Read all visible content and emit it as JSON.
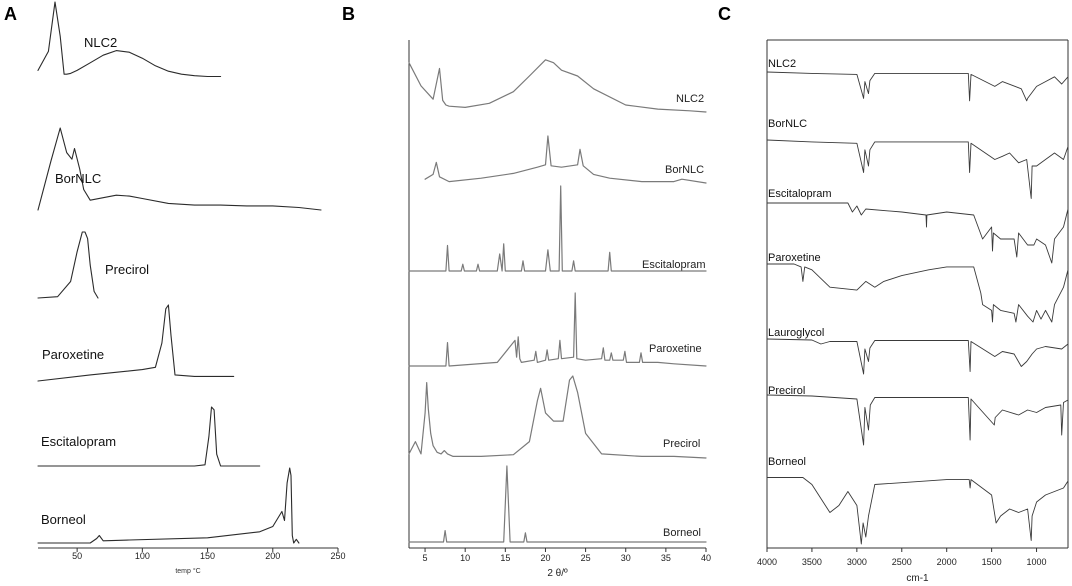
{
  "chart_data": [
    {
      "panel": "A",
      "type": "line",
      "xlabel": "temp °C",
      "xlim": [
        20,
        250
      ],
      "xticks": [
        50,
        100,
        150,
        200,
        250
      ],
      "series": [
        {
          "name": "NLC2",
          "x": [
            20,
            28,
            33,
            37,
            40,
            42,
            45,
            50,
            60,
            70,
            80,
            90,
            100,
            110,
            120,
            130,
            140,
            150,
            160
          ],
          "y": [
            0.1,
            0.35,
            1.0,
            0.55,
            0.05,
            0.05,
            0.06,
            0.1,
            0.2,
            0.3,
            0.36,
            0.34,
            0.26,
            0.16,
            0.09,
            0.05,
            0.03,
            0.02,
            0.02
          ]
        },
        {
          "name": "BorNLC",
          "x": [
            20,
            30,
            37,
            42,
            46,
            48,
            52,
            55,
            60,
            70,
            80,
            90,
            100,
            120,
            140,
            160,
            180,
            200,
            220,
            237
          ],
          "y": [
            0.0,
            0.6,
            1.0,
            0.7,
            0.62,
            0.75,
            0.5,
            0.25,
            0.12,
            0.15,
            0.18,
            0.17,
            0.14,
            0.08,
            0.06,
            0.06,
            0.05,
            0.05,
            0.03,
            0.0
          ]
        },
        {
          "name": "Precirol",
          "x": [
            20,
            35,
            45,
            50,
            54,
            56,
            58,
            60,
            63,
            66
          ],
          "y": [
            0.0,
            0.02,
            0.25,
            0.7,
            1.0,
            1.0,
            0.9,
            0.5,
            0.1,
            0.0
          ]
        },
        {
          "name": "Paroxetine",
          "x": [
            20,
            60,
            100,
            110,
            115,
            118,
            120,
            122,
            125,
            140,
            170
          ],
          "y": [
            0.0,
            0.08,
            0.15,
            0.18,
            0.5,
            0.95,
            1.0,
            0.6,
            0.08,
            0.06,
            0.06
          ]
        },
        {
          "name": "Escitalopram",
          "x": [
            20,
            100,
            140,
            148,
            151,
            153,
            155,
            157,
            160,
            190
          ],
          "y": [
            0.0,
            0.0,
            0.0,
            0.02,
            0.5,
            1.0,
            0.95,
            0.2,
            0.0,
            0.0
          ]
        },
        {
          "name": "Borneol",
          "x": [
            20,
            60,
            65,
            67,
            70,
            90,
            150,
            190,
            200,
            207,
            209,
            211,
            213,
            214,
            215,
            216,
            218,
            220
          ],
          "y": [
            0.0,
            0.0,
            0.06,
            0.1,
            0.03,
            0.04,
            0.07,
            0.15,
            0.22,
            0.42,
            0.3,
            0.8,
            1.0,
            0.9,
            0.1,
            0.0,
            0.05,
            0.0
          ]
        }
      ]
    },
    {
      "panel": "B",
      "type": "line",
      "xlabel": "2 θ/º",
      "xlim": [
        3,
        40
      ],
      "xticks": [
        5,
        10,
        15,
        20,
        25,
        30,
        35,
        40
      ],
      "series": [
        {
          "name": "NLC2",
          "x": [
            3,
            4.5,
            6,
            6.8,
            7.2,
            7.6,
            8,
            10,
            13,
            16,
            18,
            20,
            21,
            22,
            24,
            26,
            30,
            34,
            38,
            40
          ],
          "y": [
            0.85,
            0.45,
            0.22,
            0.75,
            0.2,
            0.12,
            0.1,
            0.08,
            0.15,
            0.35,
            0.62,
            0.9,
            0.85,
            0.72,
            0.62,
            0.4,
            0.12,
            0.05,
            0.02,
            0.0
          ]
        },
        {
          "name": "BorNLC",
          "x": [
            5,
            6,
            6.4,
            6.8,
            8,
            12,
            16,
            19,
            20,
            20.3,
            20.7,
            22,
            24,
            24.3,
            24.7,
            26,
            28,
            32,
            36,
            37,
            40
          ],
          "y": [
            0.1,
            0.2,
            0.45,
            0.15,
            0.05,
            0.12,
            0.22,
            0.35,
            0.4,
            1.0,
            0.38,
            0.35,
            0.4,
            0.72,
            0.38,
            0.2,
            0.12,
            0.05,
            0.05,
            0.1,
            0.02
          ]
        },
        {
          "name": "Escitalopram",
          "x": [
            3,
            7.6,
            7.8,
            8,
            9.5,
            9.7,
            9.9,
            11.4,
            11.6,
            11.8,
            14,
            14.3,
            14.6,
            14.8,
            15,
            15.2,
            17,
            17.2,
            17.4,
            20,
            20.3,
            20.6,
            21.7,
            21.9,
            22.1,
            23.3,
            23.5,
            23.7,
            27.8,
            28,
            28.2,
            40
          ],
          "y": [
            0.0,
            0.0,
            0.3,
            0.0,
            0.0,
            0.08,
            0.0,
            0.0,
            0.08,
            0.0,
            0.0,
            0.2,
            0.0,
            0.32,
            0.0,
            0.0,
            0.0,
            0.12,
            0.0,
            0.0,
            0.25,
            0.0,
            0.0,
            1.0,
            0.0,
            0.0,
            0.12,
            0.0,
            0.0,
            0.22,
            0.0,
            0.0
          ]
        },
        {
          "name": "Paroxetine",
          "x": [
            3,
            7.6,
            7.8,
            8,
            14,
            16.2,
            16.4,
            16.6,
            16.8,
            17,
            18.6,
            18.8,
            19,
            20,
            20.2,
            20.4,
            21.6,
            21.8,
            22,
            23.5,
            23.7,
            23.9,
            25,
            27,
            27.2,
            27.4,
            28,
            28.2,
            28.4,
            29.7,
            29.9,
            30.1,
            31.7,
            31.9,
            32.1,
            34,
            36,
            40
          ],
          "y": [
            0.0,
            0.0,
            0.32,
            0.0,
            0.05,
            0.35,
            0.12,
            0.4,
            0.1,
            0.05,
            0.08,
            0.2,
            0.05,
            0.08,
            0.22,
            0.08,
            0.1,
            0.35,
            0.1,
            0.12,
            1.0,
            0.1,
            0.08,
            0.1,
            0.25,
            0.08,
            0.08,
            0.18,
            0.08,
            0.08,
            0.2,
            0.05,
            0.05,
            0.18,
            0.05,
            0.05,
            0.03,
            0.0
          ]
        },
        {
          "name": "Precirol",
          "x": [
            3,
            3.8,
            4.5,
            5,
            5.2,
            5.4,
            5.7,
            6,
            6.5,
            7,
            7.4,
            7.8,
            8.5,
            12,
            16,
            18,
            19,
            19.4,
            20,
            21,
            22.2,
            23,
            23.4,
            24,
            25,
            27,
            32,
            36,
            40
          ],
          "y": [
            0.05,
            0.2,
            0.05,
            0.55,
            0.92,
            0.6,
            0.3,
            0.15,
            0.07,
            0.05,
            0.09,
            0.05,
            0.02,
            0.02,
            0.04,
            0.2,
            0.7,
            0.85,
            0.55,
            0.45,
            0.45,
            0.95,
            1.0,
            0.8,
            0.3,
            0.05,
            0.02,
            0.02,
            0.0
          ]
        },
        {
          "name": "Borneol",
          "x": [
            3,
            7.3,
            7.5,
            7.7,
            14.8,
            15.2,
            15.6,
            17.3,
            17.5,
            17.7,
            40
          ],
          "y": [
            0.0,
            0.0,
            0.15,
            0.0,
            0.0,
            1.0,
            0.0,
            0.0,
            0.12,
            0.0,
            0.0
          ]
        }
      ]
    },
    {
      "panel": "C",
      "type": "line",
      "xlabel": "cm-1",
      "xlim": [
        4000,
        650
      ],
      "xticks": [
        4000,
        3500,
        3000,
        2500,
        2000,
        1500,
        1000
      ],
      "series": [
        {
          "name": "NLC2",
          "x": [
            4000,
            3500,
            3000,
            2925,
            2910,
            2870,
            2855,
            2800,
            2000,
            1760,
            1745,
            1730,
            1465,
            1380,
            1170,
            1110,
            1100,
            1000,
            900,
            800,
            720,
            650
          ],
          "y": [
            1.0,
            0.97,
            0.95,
            0.45,
            0.8,
            0.55,
            0.82,
            0.97,
            0.97,
            0.97,
            0.4,
            0.95,
            0.7,
            0.8,
            0.65,
            0.4,
            0.45,
            0.7,
            0.8,
            0.9,
            0.75,
            0.9
          ]
        },
        {
          "name": "BorNLC",
          "x": [
            4000,
            3500,
            3000,
            2925,
            2910,
            2870,
            2855,
            2800,
            2000,
            1760,
            1745,
            1730,
            1465,
            1380,
            1300,
            1200,
            1110,
            1060,
            1050,
            1000,
            900,
            800,
            700,
            650
          ],
          "y": [
            1.0,
            0.97,
            0.95,
            0.5,
            0.85,
            0.6,
            0.85,
            0.97,
            0.97,
            0.97,
            0.5,
            0.95,
            0.7,
            0.75,
            0.8,
            0.65,
            0.7,
            0.1,
            0.6,
            0.6,
            0.7,
            0.8,
            0.7,
            0.9
          ]
        },
        {
          "name": "Escitalopram",
          "x": [
            4000,
            3100,
            3050,
            3000,
            2950,
            2900,
            2500,
            2230,
            2225,
            2220,
            2000,
            1700,
            1600,
            1500,
            1490,
            1480,
            1400,
            1250,
            1220,
            1200,
            1100,
            1030,
            1000,
            900,
            830,
            800,
            700,
            650
          ],
          "y": [
            1.0,
            1.0,
            0.85,
            0.95,
            0.8,
            0.9,
            0.85,
            0.8,
            0.6,
            0.8,
            0.85,
            0.8,
            0.4,
            0.6,
            0.2,
            0.5,
            0.4,
            0.4,
            0.1,
            0.5,
            0.3,
            0.3,
            0.4,
            0.3,
            0.0,
            0.4,
            0.6,
            0.9
          ]
        },
        {
          "name": "Paroxetine",
          "x": [
            4000,
            3700,
            3620,
            3600,
            3580,
            3500,
            3300,
            3000,
            2900,
            2800,
            2700,
            2500,
            2200,
            2000,
            1700,
            1620,
            1600,
            1500,
            1490,
            1480,
            1400,
            1250,
            1230,
            1200,
            1100,
            1040,
            1000,
            950,
            900,
            830,
            820,
            800,
            700,
            650
          ],
          "y": [
            1.0,
            1.0,
            0.95,
            0.7,
            0.95,
            0.9,
            0.6,
            0.55,
            0.7,
            0.6,
            0.7,
            0.8,
            0.9,
            0.95,
            0.95,
            0.5,
            0.3,
            0.2,
            0.0,
            0.3,
            0.2,
            0.15,
            0.0,
            0.3,
            0.1,
            0.0,
            0.2,
            0.05,
            0.2,
            0.0,
            0.1,
            0.3,
            0.6,
            0.9
          ]
        },
        {
          "name": "Lauroglycol",
          "x": [
            4000,
            3500,
            3400,
            3300,
            3000,
            2925,
            2910,
            2870,
            2855,
            2800,
            2000,
            1760,
            1740,
            1730,
            1465,
            1380,
            1250,
            1170,
            1110,
            1050,
            1000,
            900,
            720,
            650
          ],
          "y": [
            1.0,
            0.98,
            0.9,
            0.95,
            0.95,
            0.3,
            0.8,
            0.55,
            0.82,
            0.97,
            0.97,
            0.97,
            0.35,
            0.95,
            0.65,
            0.75,
            0.7,
            0.45,
            0.55,
            0.7,
            0.8,
            0.85,
            0.8,
            0.9
          ]
        },
        {
          "name": "Precirol",
          "x": [
            4000,
            3500,
            3000,
            2925,
            2910,
            2870,
            2850,
            2800,
            2000,
            1760,
            1740,
            1730,
            1470,
            1460,
            1380,
            1200,
            1100,
            1000,
            900,
            730,
            720,
            700,
            650
          ],
          "y": [
            1.0,
            0.98,
            0.92,
            0.0,
            0.75,
            0.3,
            0.8,
            0.95,
            0.95,
            0.95,
            0.1,
            0.92,
            0.4,
            0.55,
            0.7,
            0.6,
            0.7,
            0.65,
            0.75,
            0.8,
            0.2,
            0.85,
            0.9
          ]
        },
        {
          "name": "Borneol",
          "x": [
            4000,
            3600,
            3500,
            3400,
            3300,
            3200,
            3100,
            3000,
            2950,
            2930,
            2900,
            2870,
            2800,
            2000,
            1750,
            1740,
            1730,
            1500,
            1450,
            1400,
            1300,
            1200,
            1100,
            1060,
            1050,
            1000,
            900,
            800,
            700,
            650
          ],
          "y": [
            0.95,
            0.95,
            0.85,
            0.65,
            0.45,
            0.55,
            0.75,
            0.55,
            0.0,
            0.3,
            0.1,
            0.4,
            0.85,
            0.92,
            0.92,
            0.8,
            0.92,
            0.7,
            0.3,
            0.4,
            0.5,
            0.45,
            0.5,
            0.05,
            0.4,
            0.6,
            0.7,
            0.75,
            0.8,
            0.9
          ]
        }
      ]
    }
  ],
  "panels": {
    "A": {
      "label": "A"
    },
    "B": {
      "label": "B"
    },
    "C": {
      "label": "C"
    }
  },
  "colors": {
    "A": "#2b2b2b",
    "B": "#7a7a7a",
    "C": "#3a3a3a"
  }
}
